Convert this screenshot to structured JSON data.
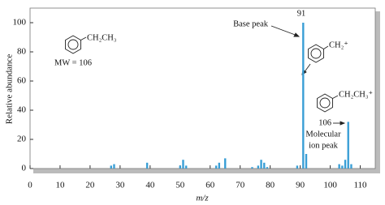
{
  "chart_data": {
    "type": "bar",
    "color": "#3a9fd6",
    "x_label": "m/z",
    "y_label": "Relative abundance",
    "x": [
      27,
      28,
      39,
      50,
      51,
      52,
      62,
      63,
      65,
      74,
      76,
      77,
      78,
      79,
      89,
      91,
      92,
      103,
      104,
      105,
      106,
      107
    ],
    "values": [
      2,
      3,
      4,
      2,
      6,
      2,
      2,
      4,
      7,
      1,
      2,
      6,
      4,
      1,
      2,
      100,
      10,
      3,
      2,
      6,
      32,
      3
    ],
    "xlim": [
      0,
      115
    ],
    "ylim": [
      0,
      110
    ],
    "xticks": [
      0,
      10,
      20,
      30,
      40,
      50,
      60,
      70,
      80,
      90,
      100,
      110
    ],
    "yticks": [
      0,
      20,
      40,
      60,
      80,
      100
    ],
    "annotations": {
      "base_mz": "91",
      "base_peak": "Base peak",
      "mol_mz": "106",
      "molecular": "Molecular",
      "ion_peak": "ion peak",
      "ethyl": "CH₂CH₃",
      "mw": "MW = 106",
      "benzyl_ion": "CH₂⁺",
      "mol_ion": "CH₂CH₃⁺"
    }
  }
}
